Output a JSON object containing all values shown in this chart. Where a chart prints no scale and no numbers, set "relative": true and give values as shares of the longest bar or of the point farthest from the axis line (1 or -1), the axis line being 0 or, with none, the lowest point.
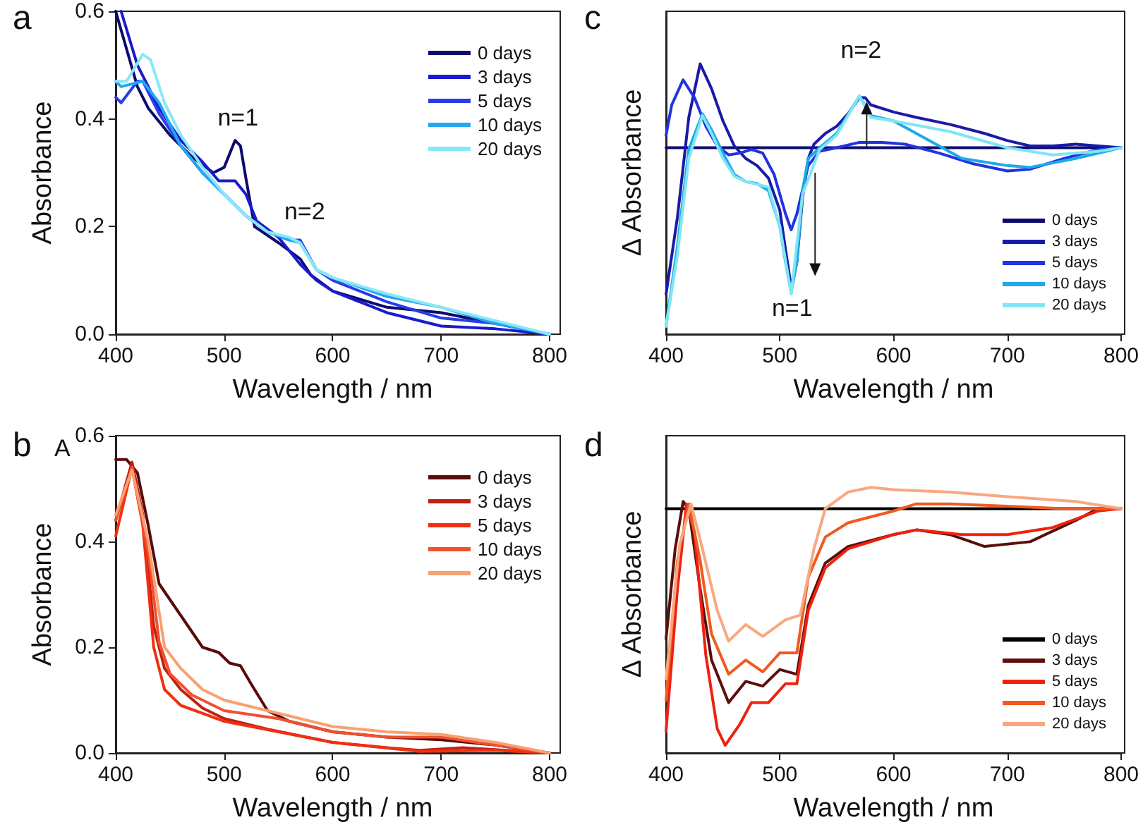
{
  "chart_data": [
    {
      "type": "line",
      "title": "a",
      "xlabel": "Wavelength / nm",
      "ylabel": "Absorbance",
      "xlim": [
        400,
        800
      ],
      "xticks": [
        400,
        500,
        600,
        700,
        800
      ],
      "ylim": [
        0,
        0.6
      ],
      "yticks": [
        {
          "value": 0,
          "label": "0.0"
        },
        {
          "value": 0.2,
          "label": "0.2"
        },
        {
          "value": 0.4,
          "label": "0.4"
        },
        {
          "value": 0.6,
          "label": "0.6"
        }
      ],
      "grid": false,
      "legend": "top right",
      "marker": "none",
      "line_style": "solid",
      "annotations": [
        "n=1",
        "n=2"
      ],
      "series": [
        {
          "name": "0 days",
          "color": "#0b0b6e",
          "x": [
            400,
            410,
            420,
            430,
            450,
            470,
            490,
            500,
            510,
            515,
            520,
            528,
            550,
            570,
            580,
            600,
            650,
            700,
            750,
            800
          ],
          "values": [
            0.6,
            0.53,
            0.46,
            0.42,
            0.37,
            0.33,
            0.3,
            0.31,
            0.36,
            0.35,
            0.29,
            0.2,
            0.17,
            0.14,
            0.11,
            0.08,
            0.05,
            0.04,
            0.02,
            0
          ]
        },
        {
          "name": "3 days",
          "color": "#1a1ad0",
          "x": [
            405,
            420,
            440,
            460,
            480,
            495,
            510,
            520,
            530,
            550,
            570,
            585,
            600,
            650,
            700,
            750,
            800
          ],
          "values": [
            0.6,
            0.5,
            0.42,
            0.36,
            0.32,
            0.285,
            0.285,
            0.26,
            0.21,
            0.18,
            0.13,
            0.1,
            0.08,
            0.04,
            0.015,
            0.01,
            0
          ]
        },
        {
          "name": "5 days",
          "color": "#2a3ce8",
          "x": [
            400,
            405,
            420,
            425,
            440,
            460,
            480,
            500,
            520,
            540,
            560,
            570,
            585,
            600,
            650,
            700,
            750,
            800
          ],
          "values": [
            0.44,
            0.43,
            0.47,
            0.47,
            0.41,
            0.35,
            0.3,
            0.26,
            0.22,
            0.19,
            0.175,
            0.175,
            0.12,
            0.1,
            0.06,
            0.03,
            0.02,
            0
          ]
        },
        {
          "name": "10 days",
          "color": "#22a8f0",
          "x": [
            400,
            405,
            425,
            440,
            460,
            480,
            500,
            520,
            540,
            560,
            570,
            585,
            600,
            650,
            700,
            750,
            800
          ],
          "values": [
            0.47,
            0.46,
            0.47,
            0.43,
            0.35,
            0.3,
            0.26,
            0.22,
            0.19,
            0.175,
            0.17,
            0.12,
            0.105,
            0.07,
            0.05,
            0.02,
            0
          ]
        },
        {
          "name": "20 days",
          "color": "#88e8f8",
          "x": [
            400,
            410,
            425,
            432,
            445,
            460,
            480,
            500,
            520,
            540,
            560,
            570,
            585,
            600,
            650,
            700,
            750,
            800
          ],
          "values": [
            0.47,
            0.47,
            0.52,
            0.51,
            0.43,
            0.37,
            0.31,
            0.26,
            0.22,
            0.19,
            0.18,
            0.17,
            0.12,
            0.105,
            0.075,
            0.05,
            0.025,
            0
          ]
        }
      ]
    },
    {
      "type": "line",
      "title": "c",
      "xlabel": "Wavelength / nm",
      "ylabel": "Δ Absorbance",
      "relative": true,
      "xlim": [
        400,
        800
      ],
      "xticks": [
        400,
        500,
        600,
        700,
        800
      ],
      "grid": false,
      "legend": "bottom right",
      "marker": "none",
      "line_style": "solid",
      "annotations": [
        "n=2",
        "n=1"
      ],
      "series": [
        {
          "name": "0 days",
          "color": "#0b0b6e",
          "x": [
            400,
            800
          ],
          "values": [
            0,
            0
          ]
        },
        {
          "name": "3 days",
          "color": "#1a1aa8",
          "x": [
            400,
            410,
            420,
            430,
            440,
            450,
            460,
            470,
            480,
            490,
            500,
            505,
            510,
            515,
            520,
            525,
            530,
            540,
            550,
            560,
            570,
            575,
            580,
            600,
            620,
            650,
            680,
            700,
            720,
            740,
            760,
            780,
            800
          ],
          "values": [
            -0.82,
            -0.39,
            0.17,
            0.47,
            0.33,
            0.15,
            0.01,
            -0.06,
            -0.1,
            -0.17,
            -0.35,
            -0.57,
            -0.78,
            -0.64,
            -0.28,
            -0.06,
            0.02,
            0.08,
            0.12,
            0.19,
            0.28,
            0.28,
            0.24,
            0.2,
            0.17,
            0.13,
            0.08,
            0.04,
            0.01,
            0.01,
            0.02,
            0.01,
            0
          ]
        },
        {
          "name": "5 days",
          "color": "#2233e0",
          "x": [
            400,
            405,
            415,
            425,
            435,
            445,
            455,
            465,
            475,
            485,
            495,
            505,
            510,
            515,
            525,
            535,
            550,
            570,
            590,
            610,
            640,
            670,
            700,
            720,
            750,
            780,
            800
          ],
          "values": [
            0.07,
            0.24,
            0.38,
            0.28,
            0.12,
            0.01,
            -0.04,
            -0.03,
            -0.01,
            -0.03,
            -0.15,
            -0.37,
            -0.46,
            -0.37,
            -0.1,
            -0.02,
            0,
            0.03,
            0.03,
            0.02,
            -0.03,
            -0.09,
            -0.13,
            -0.12,
            -0.06,
            -0.01,
            0
          ]
        },
        {
          "name": "10 days",
          "color": "#1ea8e8",
          "x": [
            400,
            410,
            420,
            432,
            440,
            450,
            460,
            470,
            480,
            490,
            500,
            505,
            510,
            515,
            520,
            525,
            535,
            550,
            570,
            580,
            600,
            620,
            660,
            700,
            720,
            760,
            800
          ],
          "values": [
            -1,
            -0.55,
            -0.01,
            0.19,
            0.1,
            -0.03,
            -0.15,
            -0.19,
            -0.2,
            -0.24,
            -0.44,
            -0.64,
            -0.81,
            -0.64,
            -0.24,
            -0.06,
            0,
            0.08,
            0.29,
            0.18,
            0.15,
            0.08,
            -0.06,
            -0.1,
            -0.11,
            -0.06,
            0
          ]
        },
        {
          "name": "20 days",
          "color": "#7fe6f5",
          "x": [
            400,
            410,
            420,
            432,
            440,
            450,
            460,
            470,
            490,
            500,
            510,
            520,
            535,
            550,
            570,
            580,
            600,
            650,
            700,
            740,
            780,
            800
          ],
          "values": [
            -1,
            -0.6,
            -0.06,
            0.18,
            0.08,
            -0.06,
            -0.16,
            -0.19,
            -0.22,
            -0.44,
            -0.82,
            -0.26,
            -0.01,
            0.07,
            0.29,
            0.17,
            0.15,
            0.09,
            0,
            -0.04,
            -0.02,
            0
          ]
        }
      ]
    },
    {
      "type": "line",
      "title": "b",
      "xlabel": "Wavelength / nm",
      "ylabel": "Absorbance",
      "xlim": [
        400,
        800
      ],
      "xticks": [
        400,
        500,
        600,
        700,
        800
      ],
      "ylim": [
        0,
        0.6
      ],
      "yticks": [
        {
          "value": 0,
          "label": "0.0"
        },
        {
          "value": 0.2,
          "label": "0.2"
        },
        {
          "value": 0.4,
          "label": "0.4"
        },
        {
          "value": 0.6,
          "label": "0.6"
        }
      ],
      "grid": false,
      "legend": "top right",
      "marker": "none",
      "line_style": "solid",
      "annotations": [
        "A"
      ],
      "series": [
        {
          "name": "0 days",
          "color": "#5a0a0a",
          "x": [
            400,
            410,
            420,
            430,
            440,
            460,
            480,
            495,
            505,
            515,
            525,
            540,
            560,
            600,
            650,
            700,
            750,
            800
          ],
          "values": [
            0.555,
            0.555,
            0.53,
            0.43,
            0.32,
            0.26,
            0.2,
            0.19,
            0.17,
            0.165,
            0.13,
            0.08,
            0.06,
            0.04,
            0.03,
            0.025,
            0.015,
            0
          ]
        },
        {
          "name": "3 days",
          "color": "#c02010",
          "x": [
            400,
            415,
            425,
            435,
            445,
            460,
            480,
            500,
            540,
            600,
            650,
            680,
            720,
            800
          ],
          "values": [
            0.44,
            0.55,
            0.45,
            0.24,
            0.16,
            0.12,
            0.085,
            0.065,
            0.045,
            0.02,
            0.01,
            0.005,
            0.01,
            0
          ]
        },
        {
          "name": "5 days",
          "color": "#f03010",
          "x": [
            400,
            415,
            425,
            435,
            445,
            460,
            500,
            550,
            600,
            680,
            750,
            800
          ],
          "values": [
            0.41,
            0.54,
            0.43,
            0.2,
            0.12,
            0.09,
            0.06,
            0.04,
            0.02,
            0.003,
            0.005,
            0
          ]
        },
        {
          "name": "10 days",
          "color": "#f05030",
          "x": [
            400,
            415,
            430,
            440,
            450,
            470,
            500,
            550,
            600,
            650,
            700,
            750,
            800
          ],
          "values": [
            0.44,
            0.54,
            0.38,
            0.21,
            0.15,
            0.11,
            0.08,
            0.065,
            0.04,
            0.03,
            0.03,
            0.015,
            0
          ]
        },
        {
          "name": "20 days",
          "color": "#f8a070",
          "x": [
            400,
            415,
            430,
            445,
            460,
            480,
            500,
            550,
            600,
            650,
            700,
            750,
            800
          ],
          "values": [
            0.45,
            0.535,
            0.4,
            0.2,
            0.16,
            0.12,
            0.1,
            0.075,
            0.05,
            0.04,
            0.035,
            0.02,
            0
          ]
        }
      ]
    },
    {
      "type": "line",
      "title": "d",
      "xlabel": "Wavelength / nm",
      "ylabel": "Δ Absorbance",
      "relative": true,
      "xlim": [
        400,
        800
      ],
      "xticks": [
        400,
        500,
        600,
        700,
        800
      ],
      "grid": false,
      "legend": "bottom right",
      "marker": "none",
      "line_style": "solid",
      "series": [
        {
          "name": "0 days",
          "color": "#000000",
          "x": [
            400,
            800
          ],
          "values": [
            0,
            0
          ]
        },
        {
          "name": "3 days",
          "color": "#5a0f0a",
          "x": [
            400,
            408,
            415,
            420,
            430,
            440,
            455,
            470,
            485,
            500,
            515,
            525,
            540,
            560,
            600,
            620,
            650,
            680,
            720,
            760,
            780,
            800
          ],
          "values": [
            -0.55,
            -0.17,
            0.03,
            0,
            -0.34,
            -0.64,
            -0.82,
            -0.73,
            -0.75,
            -0.68,
            -0.7,
            -0.41,
            -0.23,
            -0.16,
            -0.11,
            -0.09,
            -0.11,
            -0.16,
            -0.14,
            -0.05,
            0,
            0
          ]
        },
        {
          "name": "5 days",
          "color": "#f02010",
          "x": [
            400,
            410,
            418,
            425,
            435,
            445,
            452,
            465,
            475,
            490,
            505,
            515,
            525,
            540,
            560,
            600,
            620,
            660,
            700,
            740,
            780,
            800
          ],
          "values": [
            -0.94,
            -0.34,
            0.02,
            -0.1,
            -0.62,
            -0.93,
            -1,
            -0.91,
            -0.82,
            -0.82,
            -0.74,
            -0.74,
            -0.43,
            -0.25,
            -0.17,
            -0.11,
            -0.09,
            -0.11,
            -0.11,
            -0.08,
            -0.01,
            0
          ]
        },
        {
          "name": "10 days",
          "color": "#f05a20",
          "x": [
            400,
            410,
            420,
            430,
            440,
            455,
            470,
            485,
            500,
            515,
            525,
            540,
            560,
            600,
            620,
            650,
            700,
            750,
            800
          ],
          "values": [
            -0.81,
            -0.22,
            0.02,
            -0.22,
            -0.53,
            -0.7,
            -0.64,
            -0.69,
            -0.61,
            -0.61,
            -0.29,
            -0.12,
            -0.06,
            -0.01,
            0.02,
            0.02,
            0.01,
            0,
            0
          ]
        },
        {
          "name": "20 days",
          "color": "#f8a880",
          "x": [
            400,
            412,
            422,
            432,
            445,
            455,
            470,
            485,
            505,
            518,
            530,
            540,
            560,
            580,
            600,
            650,
            700,
            760,
            800
          ],
          "values": [
            -0.72,
            -0.15,
            0.02,
            -0.17,
            -0.43,
            -0.56,
            -0.49,
            -0.54,
            -0.47,
            -0.45,
            -0.17,
            0,
            0.07,
            0.09,
            0.08,
            0.07,
            0.05,
            0.03,
            0
          ]
        }
      ]
    }
  ]
}
